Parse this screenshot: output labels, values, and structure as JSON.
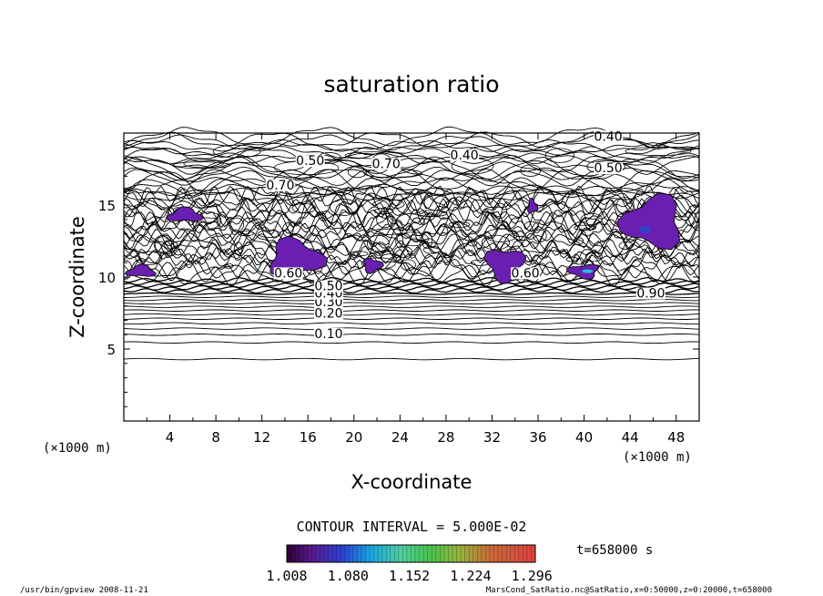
{
  "chart_data": {
    "type": "contour",
    "title": "saturation ratio",
    "xlabel": "X-coordinate",
    "ylabel": "Z-coordinate",
    "x_unit": "(×1000 m)",
    "xlim": [
      0,
      50
    ],
    "ylim": [
      0,
      20
    ],
    "x_ticks": [
      4,
      8,
      12,
      16,
      20,
      24,
      28,
      32,
      36,
      40,
      44,
      48
    ],
    "y_ticks": [
      5,
      10,
      15
    ],
    "contour_interval_text": "CONTOUR INTERVAL = 5.000E-02",
    "time_text": "t=658000 s",
    "colorbar": {
      "tick_labels": [
        "1.008",
        "1.080",
        "1.152",
        "1.224",
        "1.296"
      ],
      "min": 1.008,
      "max": 1.3
    },
    "contour_labels": [
      {
        "text": "0.10",
        "x": 17.8,
        "z": 5.9
      },
      {
        "text": "0.20",
        "x": 17.8,
        "z": 7.3
      },
      {
        "text": "0.30",
        "x": 17.8,
        "z": 8.1
      },
      {
        "text": "0.40",
        "x": 17.8,
        "z": 8.7
      },
      {
        "text": "0.50",
        "x": 17.8,
        "z": 9.2
      },
      {
        "text": "0.60",
        "x": 14.3,
        "z": 10.1
      },
      {
        "text": "0.60",
        "x": 34.9,
        "z": 10.1
      },
      {
        "text": "0.90",
        "x": 45.8,
        "z": 8.7
      },
      {
        "text": "0.40",
        "x": 29.6,
        "z": 18.3
      },
      {
        "text": "0.40",
        "x": 42.1,
        "z": 19.6
      },
      {
        "text": "0.50",
        "x": 16.2,
        "z": 17.9
      },
      {
        "text": "0.50",
        "x": 42.1,
        "z": 17.4
      },
      {
        "text": "0.70",
        "x": 22.8,
        "z": 17.7
      },
      {
        "text": "0.70",
        "x": 13.6,
        "z": 16.2
      }
    ],
    "supersaturated_regions": [
      {
        "x": 5.3,
        "z": 14.3
      },
      {
        "x": 14.9,
        "z": 11.3
      },
      {
        "x": 21.6,
        "z": 10.8
      },
      {
        "x": 33.1,
        "z": 10.9
      },
      {
        "x": 40.0,
        "z": 10.4
      },
      {
        "x": 46.0,
        "z": 13.8
      },
      {
        "x": 1.5,
        "z": 10.4
      },
      {
        "x": 35.5,
        "z": 14.9
      }
    ]
  },
  "footer": {
    "left": "/usr/bin/gpview   2008-11-21",
    "right": "MarsCond_SatRatio.nc@SatRatio,x=0:50000,z=0:20000,t=658000"
  }
}
